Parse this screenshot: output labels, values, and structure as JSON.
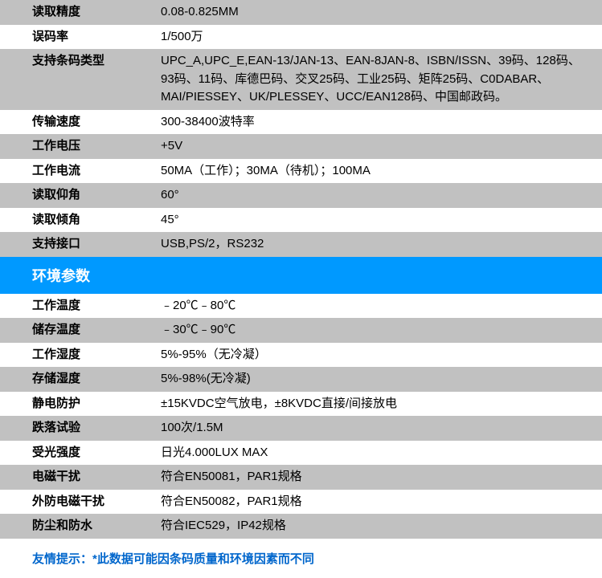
{
  "section1": {
    "rows": [
      {
        "label": "读取精度",
        "value": "0.08-0.825MM"
      },
      {
        "label": "误码率",
        "value": "1/500万"
      },
      {
        "label": "支持条码类型",
        "value": "UPC_A,UPC_E,EAN-13/JAN-13、EAN-8JAN-8、ISBN/ISSN、39码、128码、93码、11码、库德巴码、交叉25码、工业25码、矩阵25码、C0DABAR、MAI/PIESSEY、UK/PLESSEY、UCC/EAN128码、中国邮政码。"
      },
      {
        "label": "传输速度",
        "value": "300-38400波特率"
      },
      {
        "label": "工作电压",
        "value": "+5V"
      },
      {
        "label": "工作电流",
        "value": "50MA（工作）；30MA（待机）；100MA"
      },
      {
        "label": "读取仰角",
        "value": "60°"
      },
      {
        "label": "读取倾角",
        "value": "45°"
      },
      {
        "label": "支持接口",
        "value": "USB,PS/2，RS232"
      }
    ]
  },
  "section2_title": "环境参数",
  "section2": {
    "rows": [
      {
        "label": "工作温度",
        "value": "﹣20℃﹣80℃"
      },
      {
        "label": "储存温度",
        "value": "﹣30℃﹣90℃"
      },
      {
        "label": "工作湿度",
        "value": "5%-95%（无冷凝）"
      },
      {
        "label": "存储湿度",
        "value": "5%-98%(无冷凝)"
      },
      {
        "label": "静电防护",
        "value": "±15KVDC空气放电，±8KVDC直接/间接放电"
      },
      {
        "label": "跌落试验",
        "value": "100次/1.5M"
      },
      {
        "label": "受光强度",
        "value": "日光4.000LUX MAX"
      },
      {
        "label": "电磁干扰",
        "value": "符合EN50081，PAR1规格"
      },
      {
        "label": "外防电磁干扰",
        "value": "符合EN50082，PAR1规格"
      },
      {
        "label": "防尘和防水",
        "value": "符合IEC529，IP42规格"
      }
    ]
  },
  "tip": "友情提示：*此数据可能因条码质量和环境因素而不同",
  "section1_start_odd": true,
  "section2_start_odd": false,
  "colors": {
    "row_alt_bg": "#c1c1c1",
    "header_bg": "#0099ff",
    "header_text": "#ffffff",
    "tip_text": "#0066cc"
  }
}
